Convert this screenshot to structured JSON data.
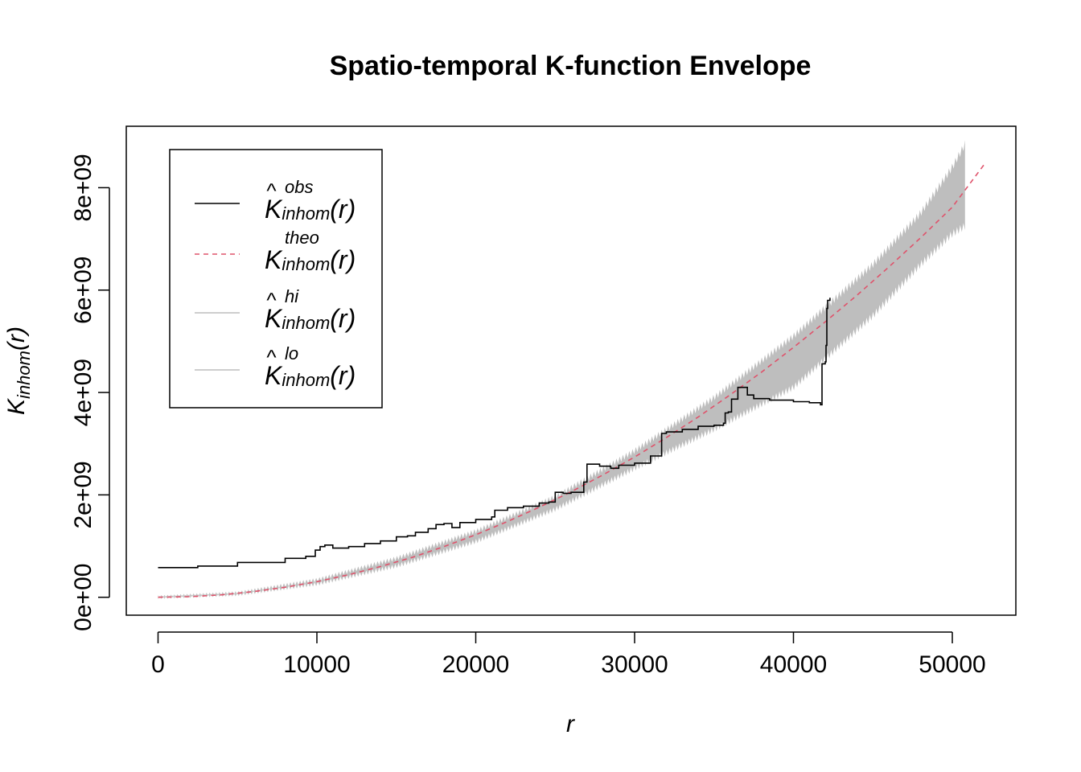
{
  "chart_data": {
    "type": "line",
    "title": "Spatio-temporal K-function Envelope",
    "xlabel": "r",
    "ylabel": {
      "base": "K",
      "sub": "inhom",
      "arg": "(r)"
    },
    "xlim": [
      -2000,
      54000
    ],
    "ylim": [
      -350000000,
      9200000000
    ],
    "x_ticks": [
      0,
      10000,
      20000,
      30000,
      40000,
      50000
    ],
    "x_tick_labels": [
      "0",
      "10000",
      "20000",
      "30000",
      "40000",
      "50000"
    ],
    "y_ticks": [
      0,
      2000000000,
      4000000000,
      6000000000,
      8000000000
    ],
    "y_tick_labels": [
      "0e+00",
      "2e+09",
      "4e+09",
      "6e+09",
      "8e+09"
    ],
    "legend": {
      "position": "top-left",
      "entries": [
        {
          "base": "K",
          "hat": true,
          "sup": "obs",
          "sub": "inhom",
          "arg": "(r)",
          "color": "#000000",
          "dash": "solid"
        },
        {
          "base": "K",
          "hat": false,
          "sup": "theo",
          "sub": "inhom",
          "arg": "(r)",
          "color": "#DF536B",
          "dash": "dashed"
        },
        {
          "base": "K",
          "hat": true,
          "sup": "hi",
          "sub": "inhom",
          "arg": "(r)",
          "color": "#BEBEBE",
          "dash": "solid"
        },
        {
          "base": "K",
          "hat": true,
          "sup": "lo",
          "sub": "inhom",
          "arg": "(r)",
          "color": "#BEBEBE",
          "dash": "solid"
        }
      ]
    },
    "series": [
      {
        "name": "obs",
        "color": "#000000",
        "style": "step",
        "x": [
          0,
          2500,
          5000,
          8000,
          9300,
          9900,
          10200,
          10500,
          11000,
          12000,
          13000,
          14000,
          15000,
          15700,
          16200,
          17000,
          17500,
          18000,
          18500,
          19000,
          20000,
          21000,
          21200,
          22000,
          23000,
          24000,
          24600,
          25000,
          25500,
          26000,
          26800,
          27000,
          27800,
          28500,
          29000,
          30000,
          31000,
          31500,
          31700,
          32000,
          33000,
          34000,
          35000,
          35600,
          35700,
          35900,
          36100,
          36500,
          37100,
          37500,
          38500,
          40000,
          41000,
          41700,
          41800,
          42000,
          42050,
          42100,
          42150,
          42300
        ],
        "y": [
          580000000,
          610000000,
          680000000,
          760000000,
          800000000,
          920000000,
          990000000,
          1020000000,
          960000000,
          990000000,
          1050000000,
          1100000000,
          1180000000,
          1200000000,
          1270000000,
          1340000000,
          1420000000,
          1440000000,
          1360000000,
          1460000000,
          1520000000,
          1570000000,
          1700000000,
          1750000000,
          1780000000,
          1840000000,
          1860000000,
          2050000000,
          2030000000,
          2050000000,
          2250000000,
          2600000000,
          2560000000,
          2520000000,
          2580000000,
          2620000000,
          2760000000,
          2760000000,
          3200000000,
          3230000000,
          3280000000,
          3340000000,
          3360000000,
          3400000000,
          3600000000,
          3620000000,
          3870000000,
          4100000000,
          3950000000,
          3880000000,
          3850000000,
          3820000000,
          3800000000,
          3760000000,
          4560000000,
          4600000000,
          4920000000,
          5640000000,
          5800000000,
          5850000000
        ]
      },
      {
        "name": "theo",
        "color": "#DF536B",
        "style": "dashed",
        "x": [
          0,
          2000,
          4000,
          6000,
          8000,
          10000,
          12000,
          14000,
          16000,
          18000,
          20000,
          22000,
          24000,
          26000,
          28000,
          30000,
          32000,
          34000,
          36000,
          38000,
          40000,
          42000,
          44000,
          46000,
          48000,
          50000,
          52000
        ],
        "y": [
          0,
          12000000,
          48000000,
          110000000,
          195000000,
          305000000,
          440000000,
          600000000,
          780000000,
          990000000,
          1220000000,
          1480000000,
          1760000000,
          2060000000,
          2390000000,
          2740000000,
          3120000000,
          3520000000,
          3950000000,
          4400000000,
          4880000000,
          5380000000,
          5900000000,
          6450000000,
          7020000000,
          7620000000,
          8450000000
        ]
      },
      {
        "name": "hi",
        "color": "#BEBEBE",
        "x": [
          0,
          5000,
          10000,
          15000,
          20000,
          25000,
          30000,
          35000,
          40000,
          45000,
          48000,
          50000,
          50800
        ],
        "y": [
          10000000,
          85000000,
          340000000,
          760000000,
          1290000000,
          1960000000,
          2860000000,
          3900000000,
          5100000000,
          6500000000,
          7500000000,
          8400000000,
          8850000000
        ]
      },
      {
        "name": "lo",
        "color": "#BEBEBE",
        "x": [
          0,
          5000,
          10000,
          15000,
          20000,
          25000,
          30000,
          35000,
          40000,
          45000,
          48000,
          50000,
          50800
        ],
        "y": [
          -5000000,
          55000000,
          260000000,
          610000000,
          1090000000,
          1720000000,
          2520000000,
          3280000000,
          4100000000,
          5500000000,
          6500000000,
          7100000000,
          7250000000
        ]
      }
    ]
  }
}
